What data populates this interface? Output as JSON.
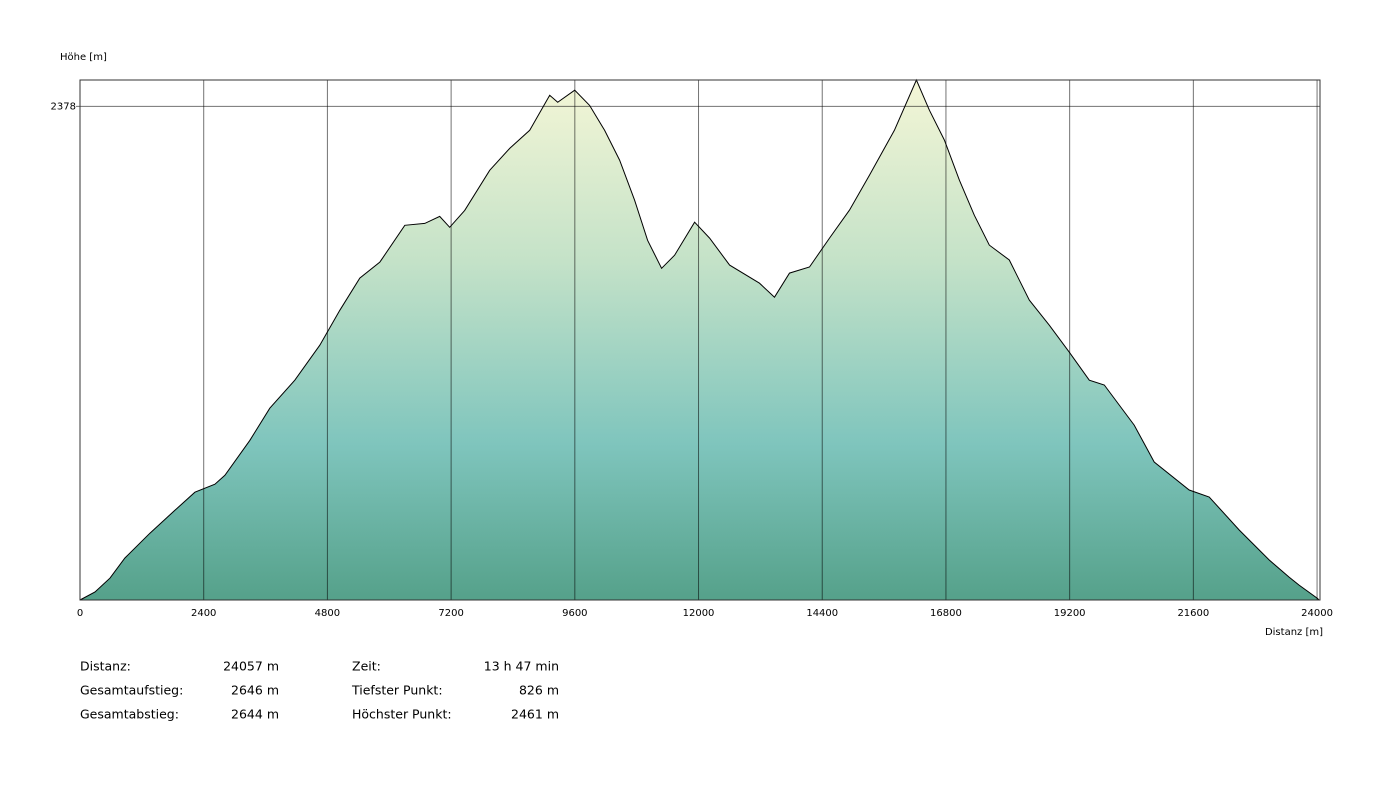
{
  "chart_data": {
    "type": "area",
    "y_label": "Höhe [m]",
    "x_label": "Distanz [m]",
    "xlim": [
      0,
      24057
    ],
    "ylim": [
      826,
      2461
    ],
    "xticks": [
      0,
      2400,
      4800,
      7200,
      9600,
      12000,
      14400,
      16800,
      19200,
      21600,
      24000
    ],
    "yticks": [
      2378
    ],
    "grid": true,
    "x": [
      0,
      291,
      582,
      872,
      1357,
      1842,
      2229,
      2617,
      2811,
      3296,
      3683,
      4168,
      4653,
      5041,
      5428,
      5816,
      6301,
      6689,
      6979,
      7173,
      7464,
      7949,
      8336,
      8724,
      9112,
      9267,
      9597,
      9887,
      10178,
      10469,
      10760,
      11012,
      11283,
      11535,
      11923,
      12214,
      12602,
      13183,
      13474,
      13765,
      14153,
      14540,
      14928,
      15316,
      15800,
      16227,
      16479,
      16770,
      17061,
      17351,
      17642,
      18030,
      18418,
      18805,
      19193,
      19581,
      19872,
      20162,
      20453,
      20841,
      21520,
      21907,
      22489,
      23070,
      23458,
      23652,
      24001,
      24040
    ],
    "y": [
      826,
      851,
      895,
      958,
      1036,
      1108,
      1165,
      1190,
      1218,
      1328,
      1429,
      1517,
      1627,
      1737,
      1838,
      1888,
      2004,
      2010,
      2032,
      1998,
      2051,
      2177,
      2246,
      2303,
      2413,
      2391,
      2429,
      2381,
      2303,
      2209,
      2083,
      1957,
      1869,
      1910,
      2014,
      1964,
      1879,
      1822,
      1778,
      1854,
      1873,
      1964,
      2052,
      2162,
      2303,
      2461,
      2366,
      2272,
      2146,
      2036,
      1942,
      1895,
      1769,
      1690,
      1605,
      1517,
      1502,
      1439,
      1376,
      1260,
      1172,
      1150,
      1046,
      952,
      898,
      873,
      832,
      826
    ]
  },
  "summary": {
    "left": [
      {
        "label": "Distanz:",
        "value": "24057 m"
      },
      {
        "label": "Gesamtaufstieg:",
        "value": "2646 m"
      },
      {
        "label": "Gesamtabstieg:",
        "value": "2644 m"
      }
    ],
    "right": [
      {
        "label": "Zeit:",
        "value": "13 h 47 min"
      },
      {
        "label": "Tiefster Punkt:",
        "value": "826 m"
      },
      {
        "label": "Höchster Punkt:",
        "value": "2461 m"
      }
    ]
  }
}
